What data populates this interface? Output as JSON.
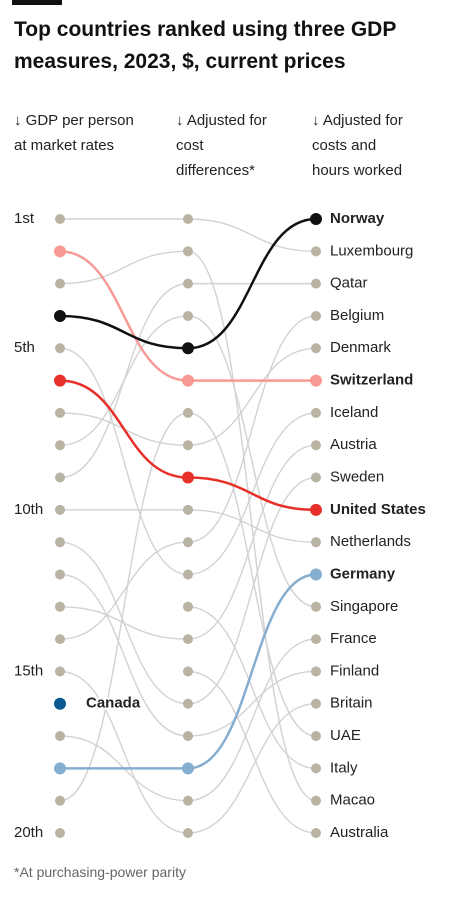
{
  "chart_data": {
    "type": "bump",
    "title": "Top countries ranked using three GDP measures, 2023, $, current prices",
    "categories": [
      "↓ GDP per person at market rates",
      "↓ Adjusted for cost differences*",
      "↓ Adjusted for costs and hours worked"
    ],
    "ylim": [
      1,
      20
    ],
    "yticks": [
      {
        "value": 1,
        "label": "1st"
      },
      {
        "value": 5,
        "label": "5th"
      },
      {
        "value": 10,
        "label": "10th"
      },
      {
        "value": 15,
        "label": "15th"
      },
      {
        "value": 20,
        "label": "20th"
      }
    ],
    "line_color": "#d2d2d2",
    "dot_color": "#b8b3a3",
    "series": [
      {
        "name": "Luxembourg",
        "values": [
          1,
          1,
          2
        ]
      },
      {
        "name": "Qatar",
        "values": [
          9,
          3,
          3
        ]
      },
      {
        "name": "Belgium",
        "values": [
          14,
          11,
          4
        ]
      },
      {
        "name": "Denmark",
        "values": [
          7,
          8,
          5
        ]
      },
      {
        "name": "Iceland",
        "values": [
          5,
          12,
          7
        ]
      },
      {
        "name": "Austria",
        "values": [
          13,
          14,
          8
        ]
      },
      {
        "name": "Sweden",
        "values": [
          11,
          16,
          9
        ]
      },
      {
        "name": "Netherlands",
        "values": [
          10,
          10,
          11
        ]
      },
      {
        "name": "Singapore",
        "values": [
          8,
          4,
          13
        ]
      },
      {
        "name": "France",
        "values": [
          17,
          19,
          14
        ]
      },
      {
        "name": "Finland",
        "values": [
          12,
          17,
          15
        ]
      },
      {
        "name": "Britain",
        "values": [
          15,
          20,
          16
        ]
      },
      {
        "name": "UAE",
        "values": [
          19,
          7,
          17
        ]
      },
      {
        "name": "Italy",
        "values": [
          null,
          13,
          18
        ]
      },
      {
        "name": "Macao",
        "values": [
          3,
          2,
          19
        ]
      },
      {
        "name": "Australia",
        "values": [
          null,
          15,
          20
        ]
      },
      {
        "name": "Canada",
        "color": "#0b5a8f",
        "values": [
          16,
          null,
          null
        ]
      },
      {
        "name": "Germany",
        "color": "#86aed0",
        "values": [
          18,
          18,
          12
        ]
      },
      {
        "name": "United States",
        "color": "#e8302a",
        "values": [
          6,
          9,
          10
        ]
      },
      {
        "name": "Switzerland",
        "color": "#f79a93",
        "values": [
          2,
          6,
          6
        ]
      },
      {
        "name": "Norway",
        "color": "#111111",
        "values": [
          4,
          5,
          1
        ]
      }
    ],
    "footnote": "*At purchasing-power parity"
  }
}
